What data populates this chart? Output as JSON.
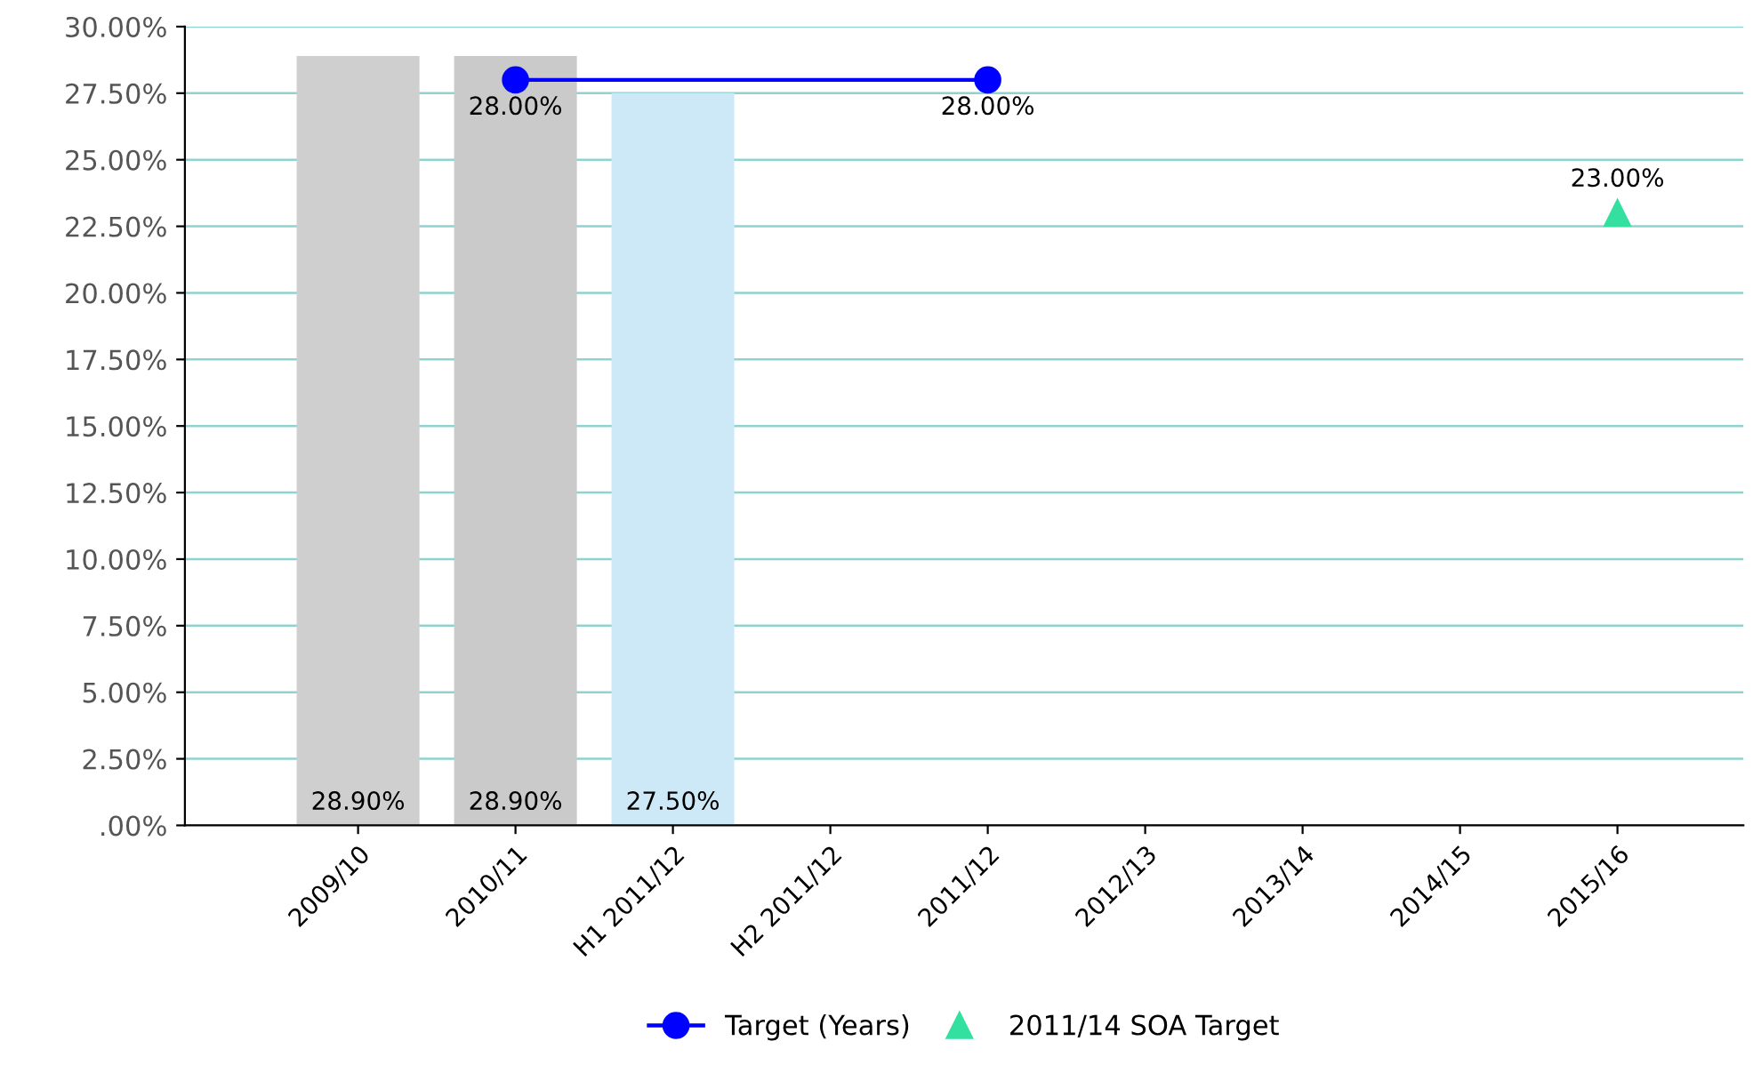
{
  "chart_data": {
    "type": "bar",
    "categories": [
      "2009/10",
      "2010/11",
      "H1 2011/12",
      "H2 2011/12",
      "2011/12",
      "2012/13",
      "2013/14",
      "2014/15",
      "2015/16"
    ],
    "series": [
      {
        "colors": [
          "#cfcfcf",
          "#cacaca",
          "#cde9f8",
          null,
          null,
          null,
          null,
          null,
          null
        ],
        "values": [
          28.9,
          28.9,
          27.5,
          null,
          null,
          null,
          null,
          null,
          null
        ],
        "value_labels": [
          "28.90%",
          "28.90%",
          "27.50%",
          null,
          null,
          null,
          null,
          null,
          null
        ]
      },
      {
        "type": "line",
        "name": "Target (Years)",
        "color": "#0000ff",
        "marker": "circle",
        "x": [
          "2010/11",
          "2011/12"
        ],
        "values": [
          28,
          28
        ],
        "value_labels": [
          "28.00%",
          "28.00%"
        ]
      },
      {
        "type": "scatter",
        "name": "2011/14 SOA Target",
        "color": "#33e0a0",
        "marker": "triangle",
        "x": [
          "2015/16"
        ],
        "values": [
          23
        ],
        "value_labels": [
          "23.00%"
        ]
      }
    ],
    "ylim": [
      0,
      30
    ],
    "yticks": [
      {
        "value": 0,
        "label": ".00%"
      },
      {
        "value": 2.5,
        "label": "2.50%"
      },
      {
        "value": 5,
        "label": "5.00%"
      },
      {
        "value": 7.5,
        "label": "7.50%"
      },
      {
        "value": 10,
        "label": "10.00%"
      },
      {
        "value": 12.5,
        "label": "12.50%"
      },
      {
        "value": 15,
        "label": "15.00%"
      },
      {
        "value": 17.5,
        "label": "17.50%"
      },
      {
        "value": 20,
        "label": "20.00%"
      },
      {
        "value": 22.5,
        "label": "22.50%"
      },
      {
        "value": 25,
        "label": "25.00%"
      },
      {
        "value": 27.5,
        "label": "27.50%"
      },
      {
        "value": 30,
        "label": "30.00%"
      }
    ],
    "grid": "y",
    "legend": "bottom"
  }
}
